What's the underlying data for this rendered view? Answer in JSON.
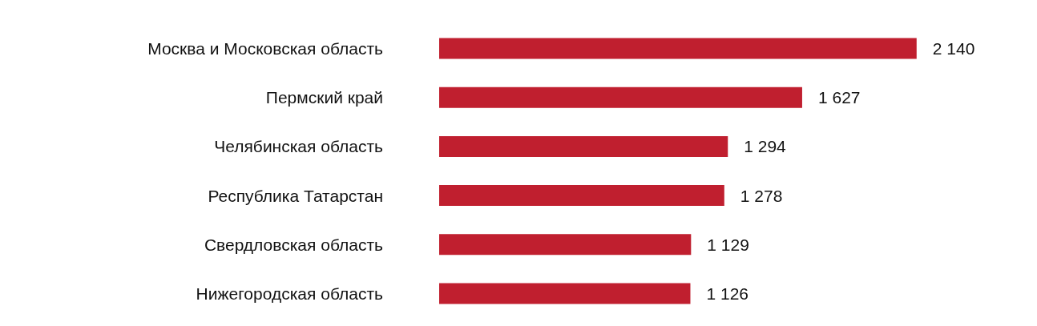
{
  "chart_data": {
    "type": "bar",
    "orientation": "horizontal",
    "categories": [
      "Москва и Московская область",
      "Пермский край",
      "Челябинская область",
      "Республика Татарстан",
      "Свердловская область",
      "Нижегородская область"
    ],
    "values": [
      2140,
      1627,
      1294,
      1278,
      1129,
      1126
    ],
    "value_labels": [
      "2 140",
      "1 627",
      "1 294",
      "1 278",
      "1 129",
      "1 126"
    ],
    "color": "#c01f2f",
    "grid": false
  }
}
